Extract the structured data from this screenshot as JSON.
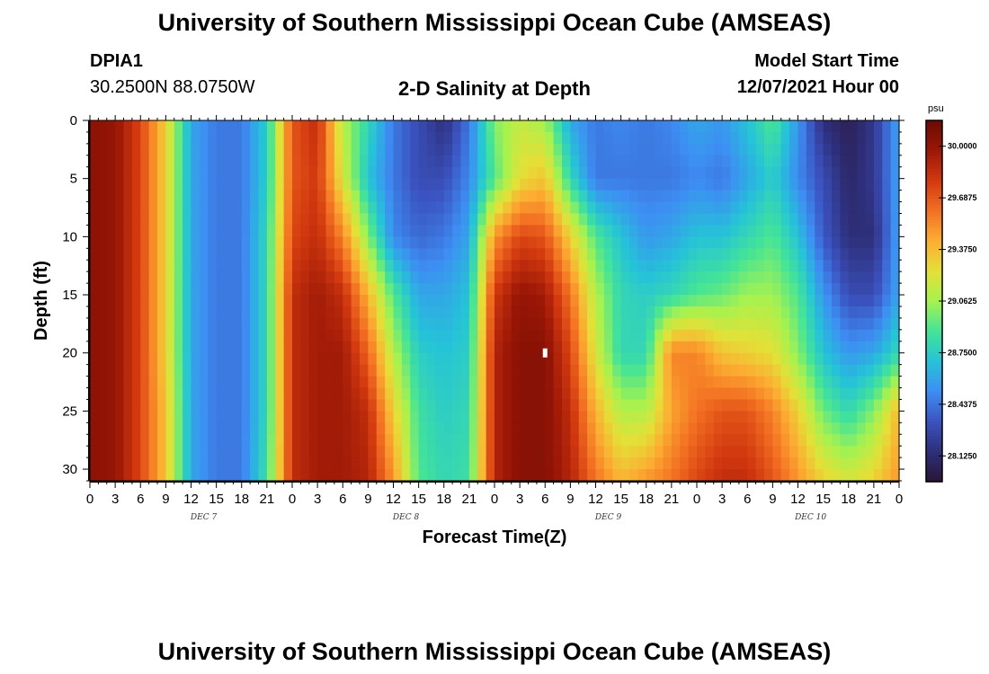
{
  "header": {
    "title": "University of Southern Mississippi Ocean Cube (AMSEAS)",
    "station": "DPIA1",
    "coords": "30.2500N  88.0750W",
    "subtitle": "2-D Salinity at Depth",
    "model_label": "Model Start Time",
    "model_time": "12/07/2021 Hour 00"
  },
  "footer": {
    "title": "University of Southern Mississippi Ocean Cube (AMSEAS)"
  },
  "chart_data": {
    "type": "heatmap",
    "title": "2-D Salinity at Depth",
    "xlabel": "Forecast Time(Z)",
    "ylabel": "Depth (ft)",
    "x_range_hours": [
      0,
      96
    ],
    "x_ticks": [
      "0",
      "3",
      "6",
      "9",
      "12",
      "15",
      "18",
      "21",
      "0",
      "3",
      "6",
      "9",
      "12",
      "15",
      "18",
      "21",
      "0",
      "3",
      "6",
      "9",
      "12",
      "15",
      "18",
      "21",
      "0",
      "3",
      "6",
      "9",
      "12",
      "15",
      "18",
      "21",
      "0"
    ],
    "date_labels": [
      "DEC 7",
      "DEC 8",
      "DEC 9",
      "DEC 10"
    ],
    "ylim": [
      0,
      31
    ],
    "y_ticks": [
      "0",
      "5",
      "10",
      "15",
      "20",
      "25",
      "30"
    ],
    "y_tick_values": [
      0,
      5,
      10,
      15,
      20,
      25,
      30
    ],
    "colorbar": {
      "unit": "psu",
      "min": 27.9688,
      "max": 30.1562,
      "labels": [
        "30.0000",
        "29.6875",
        "29.3750",
        "29.0625",
        "28.7500",
        "28.4375",
        "28.1250"
      ],
      "values": [
        30.0,
        29.6875,
        29.375,
        29.0625,
        28.75,
        28.4375,
        28.125
      ],
      "colors": [
        "#2a1535",
        "#2e2f7a",
        "#3b53c0",
        "#3d8ef3",
        "#25c3d8",
        "#44e497",
        "#a7f24e",
        "#e4e037",
        "#fcad32",
        "#f37022",
        "#d2390f",
        "#9b1706",
        "#6b0a04"
      ]
    },
    "salinity_psu_grid": {
      "depths_ft": [
        0,
        5,
        10,
        15,
        20,
        25,
        31
      ],
      "hours": [
        0,
        3,
        6,
        9,
        12,
        15,
        18,
        21,
        24,
        27,
        30,
        33,
        36,
        39,
        42,
        45,
        48,
        51,
        54,
        57,
        60,
        63,
        66,
        69,
        72,
        75,
        78,
        81,
        84,
        87,
        90,
        93,
        96
      ],
      "rows": [
        [
          30.03,
          30.0,
          29.75,
          29.3,
          28.6,
          28.45,
          28.45,
          28.75,
          29.7,
          29.85,
          29.1,
          28.8,
          28.45,
          28.3,
          28.15,
          28.45,
          29.0,
          29.15,
          29.05,
          28.6,
          28.45,
          28.5,
          28.45,
          28.5,
          28.6,
          28.55,
          28.7,
          28.9,
          28.55,
          28.15,
          28.05,
          28.2,
          28.6
        ],
        [
          30.03,
          30.0,
          29.75,
          29.3,
          28.6,
          28.45,
          28.45,
          28.75,
          29.7,
          29.8,
          29.2,
          28.7,
          28.45,
          28.3,
          28.3,
          28.5,
          28.9,
          29.25,
          29.35,
          28.8,
          28.45,
          28.45,
          28.45,
          28.45,
          28.5,
          28.45,
          28.6,
          28.75,
          28.5,
          28.3,
          28.1,
          28.2,
          28.6
        ],
        [
          30.03,
          30.0,
          29.75,
          29.3,
          28.6,
          28.45,
          28.45,
          28.8,
          29.75,
          29.85,
          29.55,
          29.0,
          28.5,
          28.4,
          28.45,
          28.6,
          29.5,
          29.75,
          29.7,
          29.3,
          28.9,
          28.7,
          28.55,
          28.6,
          28.7,
          28.7,
          28.8,
          28.9,
          28.7,
          28.35,
          28.15,
          28.15,
          28.6
        ],
        [
          30.03,
          30.0,
          29.75,
          29.3,
          28.6,
          28.45,
          28.45,
          28.8,
          29.85,
          29.95,
          29.85,
          29.4,
          28.9,
          28.6,
          28.6,
          28.7,
          29.8,
          30.0,
          29.95,
          29.6,
          29.1,
          28.8,
          28.75,
          28.8,
          28.9,
          28.95,
          29.05,
          29.05,
          28.9,
          28.55,
          28.3,
          28.3,
          28.6
        ],
        [
          30.03,
          30.0,
          29.75,
          29.3,
          28.6,
          28.45,
          28.45,
          28.8,
          29.85,
          29.95,
          29.95,
          29.65,
          29.1,
          28.75,
          28.7,
          28.75,
          29.9,
          30.05,
          30.05,
          29.75,
          29.2,
          28.8,
          28.8,
          29.55,
          29.55,
          29.35,
          29.3,
          29.25,
          29.0,
          28.7,
          28.55,
          28.6,
          28.8
        ],
        [
          30.03,
          30.0,
          29.75,
          29.35,
          28.6,
          28.45,
          28.45,
          28.8,
          29.85,
          29.95,
          29.95,
          29.85,
          29.3,
          28.85,
          28.75,
          28.8,
          29.9,
          30.05,
          30.05,
          29.85,
          29.4,
          29.1,
          29.1,
          29.45,
          29.6,
          29.7,
          29.7,
          29.55,
          29.3,
          28.95,
          28.8,
          29.0,
          29.4
        ],
        [
          30.03,
          30.0,
          29.75,
          29.35,
          28.6,
          28.45,
          28.45,
          28.85,
          29.85,
          29.95,
          29.95,
          29.9,
          29.5,
          28.9,
          28.8,
          28.85,
          29.9,
          30.05,
          30.05,
          29.9,
          29.6,
          29.4,
          29.5,
          29.6,
          29.75,
          29.85,
          29.85,
          29.7,
          29.5,
          29.3,
          29.2,
          29.3,
          29.5
        ]
      ]
    },
    "missing_cell": {
      "hour": 54,
      "depth_ft": 20
    }
  }
}
